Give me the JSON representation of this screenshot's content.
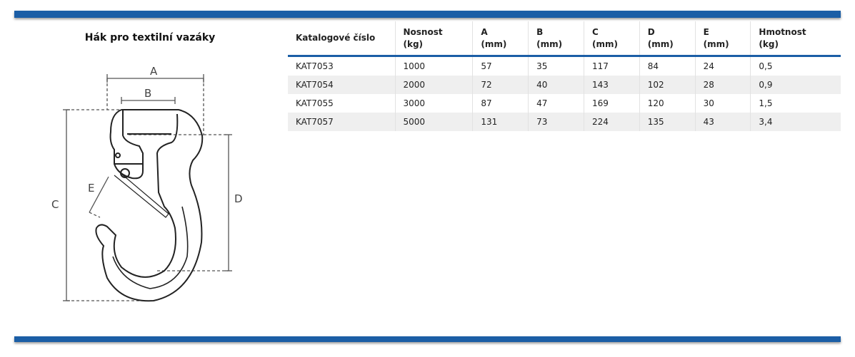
{
  "title": "Hák pro textilní vazáky",
  "diagram_labels": {
    "a": "A",
    "b": "B",
    "c": "C",
    "d": "D",
    "e": "E"
  },
  "colors": {
    "accent": "#1b5ea6",
    "row_alt": "#efefef"
  },
  "table": {
    "headers": [
      [
        "Katalogové číslo",
        ""
      ],
      [
        "Nosnost",
        "(kg)"
      ],
      [
        "A",
        "(mm)"
      ],
      [
        "B",
        "(mm)"
      ],
      [
        "C",
        "(mm)"
      ],
      [
        "D",
        "(mm)"
      ],
      [
        "E",
        "(mm)"
      ],
      [
        "Hmotnost",
        "(kg)"
      ]
    ],
    "rows": [
      [
        "KAT7053",
        "1000",
        "57",
        "35",
        "117",
        "84",
        "24",
        "0,5"
      ],
      [
        "KAT7054",
        "2000",
        "72",
        "40",
        "143",
        "102",
        "28",
        "0,9"
      ],
      [
        "KAT7055",
        "3000",
        "87",
        "47",
        "169",
        "120",
        "30",
        "1,5"
      ],
      [
        "KAT7057",
        "5000",
        "131",
        "73",
        "224",
        "135",
        "43",
        "3,4"
      ]
    ]
  }
}
